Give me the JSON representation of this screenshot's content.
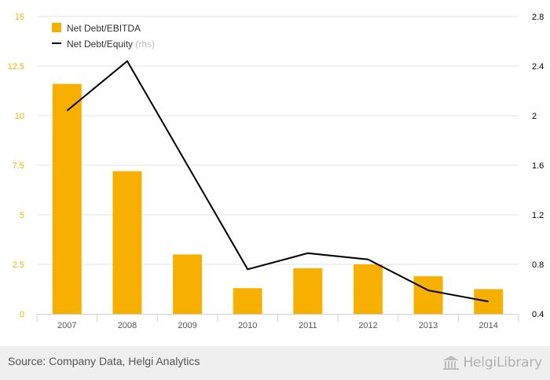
{
  "chart_data": {
    "type": "bar",
    "categories": [
      "2007",
      "2008",
      "2009",
      "2010",
      "2011",
      "2012",
      "2013",
      "2014"
    ],
    "series": [
      {
        "name": "Net Debt/EBITDA",
        "type": "bar",
        "axis": "left",
        "color": "#f7b000",
        "values": [
          11.6,
          7.2,
          3.0,
          1.3,
          2.3,
          2.5,
          1.9,
          1.25
        ]
      },
      {
        "name": "Net Debt/Equity",
        "name_suffix": "(rhs)",
        "type": "line",
        "axis": "right",
        "color": "#000000",
        "values": [
          2.04,
          2.44,
          1.6,
          0.76,
          0.89,
          0.84,
          0.59,
          0.5
        ]
      }
    ],
    "y_left": {
      "ylim": [
        0,
        15
      ],
      "ticks": [
        0,
        2.5,
        5,
        7.5,
        10,
        12.5,
        15
      ],
      "tick_labels": [
        "0",
        "2.5",
        "5",
        "7.5",
        "10",
        "12.5",
        "15"
      ],
      "color": "#f7b000"
    },
    "y_right": {
      "ylim": [
        0.4,
        2.8
      ],
      "ticks": [
        0.4,
        0.8,
        1.2,
        1.6,
        2,
        2.4,
        2.8
      ],
      "tick_labels": [
        "0.4",
        "0.8",
        "1.2",
        "1.6",
        "2",
        "2.4",
        "2.8"
      ],
      "color": "#000000"
    },
    "grid": true,
    "legend_placement": "top-left"
  },
  "footer": {
    "source": "Source: Company Data, Helgi Analytics",
    "brand": "HelgiLibrary",
    "brand_icon": "library-building-icon"
  }
}
